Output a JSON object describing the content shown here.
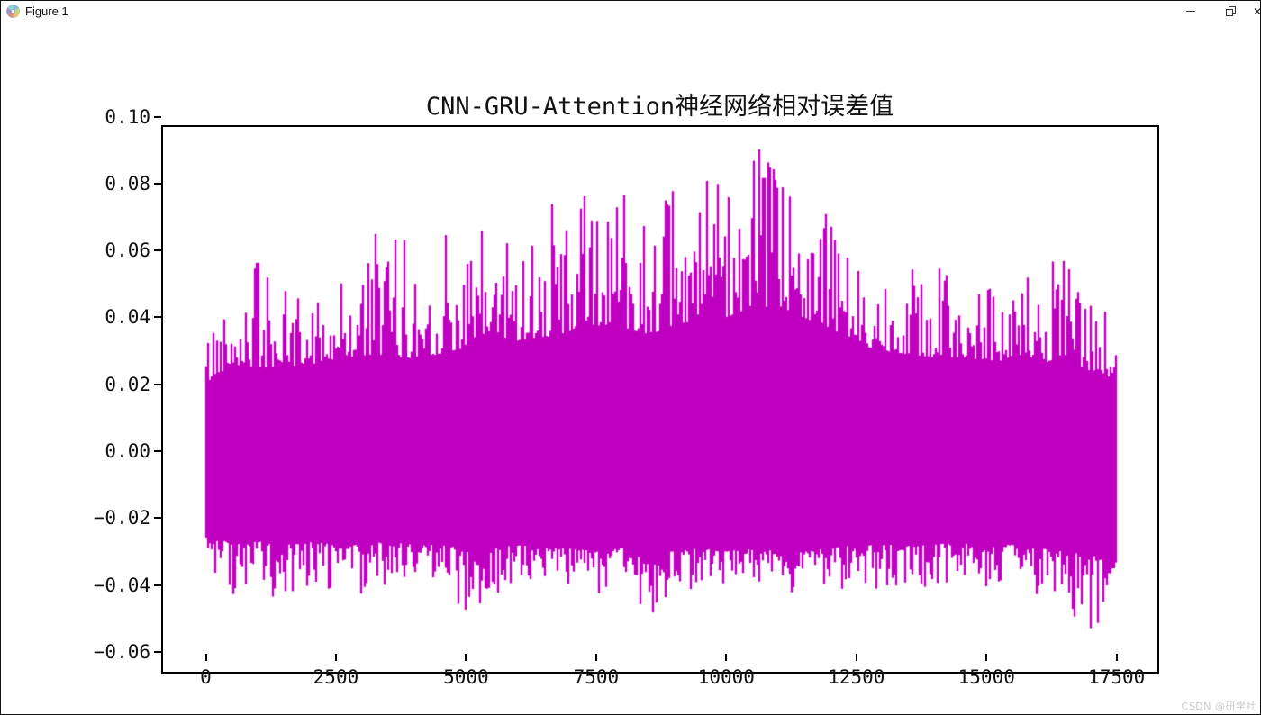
{
  "window": {
    "title": "Figure 1"
  },
  "watermark": "CSDN @研学社",
  "chart_data": {
    "type": "line",
    "title": "CNN-GRU-Attention神经网络相对误差值",
    "xlabel": "",
    "ylabel": "",
    "legend": null,
    "grid": false,
    "line_color": "#C000C0",
    "background": "#ffffff",
    "x_tick_values": [
      0,
      2500,
      5000,
      7500,
      10000,
      12500,
      15000,
      17500
    ],
    "x_tick_labels": [
      "0",
      "2500",
      "5000",
      "7500",
      "10000",
      "12500",
      "15000",
      "17500"
    ],
    "y_tick_values": [
      0.1,
      0.08,
      0.06,
      0.04,
      0.02,
      0.0,
      -0.02,
      -0.04,
      -0.06
    ],
    "y_tick_labels": [
      "0.10",
      "0.08",
      "0.06",
      "0.04",
      "0.02",
      "0.00",
      "−0.02",
      "−0.04",
      "−0.06"
    ],
    "xlim": [
      -860,
      18310
    ],
    "ylim": [
      -0.0605,
      0.1035
    ],
    "x_range": [
      0,
      17500
    ],
    "n_points": 17500,
    "series_name": "相对误差值",
    "signal_description": "dense zero-mean noise signal of relative errors; amplitude envelope sampled every 500 x-units below",
    "envelope_step": 500,
    "upper_spike": [
      0.036,
      0.051,
      0.061,
      0.048,
      0.046,
      0.055,
      0.062,
      0.07,
      0.065,
      0.07,
      0.058,
      0.073,
      0.067,
      0.072,
      0.078,
      0.082,
      0.088,
      0.073,
      0.078,
      0.08,
      0.083,
      0.096,
      0.083,
      0.088,
      0.072,
      0.062,
      0.057,
      0.056,
      0.054,
      0.057,
      0.052,
      0.057,
      0.05,
      0.066,
      0.045,
      0.04
    ],
    "lower_spike": [
      -0.034,
      -0.05,
      -0.04,
      -0.046,
      -0.044,
      -0.04,
      -0.046,
      -0.039,
      -0.042,
      -0.038,
      -0.05,
      -0.044,
      -0.042,
      -0.039,
      -0.041,
      -0.043,
      -0.038,
      -0.053,
      -0.04,
      -0.043,
      -0.042,
      -0.038,
      -0.052,
      -0.04,
      -0.045,
      -0.038,
      -0.042,
      -0.04,
      -0.043,
      -0.038,
      -0.041,
      -0.039,
      -0.043,
      -0.049,
      -0.055,
      -0.042
    ],
    "core_upper": [
      0.02,
      0.026,
      0.025,
      0.025,
      0.026,
      0.027,
      0.028,
      0.029,
      0.027,
      0.029,
      0.031,
      0.033,
      0.033,
      0.034,
      0.035,
      0.037,
      0.037,
      0.035,
      0.037,
      0.039,
      0.04,
      0.043,
      0.042,
      0.04,
      0.036,
      0.032,
      0.03,
      0.029,
      0.028,
      0.028,
      0.027,
      0.027,
      0.026,
      0.027,
      0.024,
      0.021
    ],
    "core_lower": [
      -0.024,
      -0.028,
      -0.027,
      -0.028,
      -0.027,
      -0.028,
      -0.028,
      -0.027,
      -0.028,
      -0.028,
      -0.029,
      -0.029,
      -0.028,
      -0.029,
      -0.029,
      -0.03,
      -0.029,
      -0.03,
      -0.03,
      -0.029,
      -0.03,
      -0.029,
      -0.03,
      -0.03,
      -0.029,
      -0.028,
      -0.028,
      -0.028,
      -0.028,
      -0.027,
      -0.028,
      -0.028,
      -0.029,
      -0.03,
      -0.031,
      -0.033
    ],
    "seed": 42
  }
}
